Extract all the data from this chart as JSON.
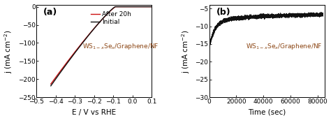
{
  "panel_a": {
    "label": "(a)",
    "xlabel": "E / V vs RHE",
    "ylabel": "j (mA cm$^{-2}$)",
    "xlim": [
      -0.5,
      0.1
    ],
    "ylim": [
      -250,
      5
    ],
    "yticks": [
      0,
      -50,
      -100,
      -150,
      -200,
      -250
    ],
    "xticks": [
      -0.5,
      -0.4,
      -0.3,
      -0.2,
      -0.1,
      0.0,
      0.1
    ],
    "legend_initial": "Initial",
    "legend_after": "After 20h",
    "annotation": "WS$_{1-x}$Se$_x$/Graphene/NF",
    "color_initial": "#111111",
    "color_after": "#cc1111",
    "anno_color": "#8B4513"
  },
  "panel_b": {
    "label": "(b)",
    "xlabel": "Time (sec)",
    "ylabel": "j (mA cm$^{-2}$)",
    "xlim": [
      0,
      85000
    ],
    "ylim": [
      -30,
      -4
    ],
    "yticks": [
      -5,
      -10,
      -15,
      -20,
      -25,
      -30
    ],
    "xticks": [
      0,
      20000,
      40000,
      60000,
      80000
    ],
    "annotation": "WS$_{1-x}$Se$_x$/Graphene/NF",
    "color_line": "#111111",
    "anno_color": "#8B4513"
  },
  "background_color": "#ffffff",
  "font_size_label": 7.5,
  "font_size_tick": 6.5,
  "font_size_annotation": 6.5,
  "font_size_legend": 6.5,
  "font_size_panel_label": 9
}
